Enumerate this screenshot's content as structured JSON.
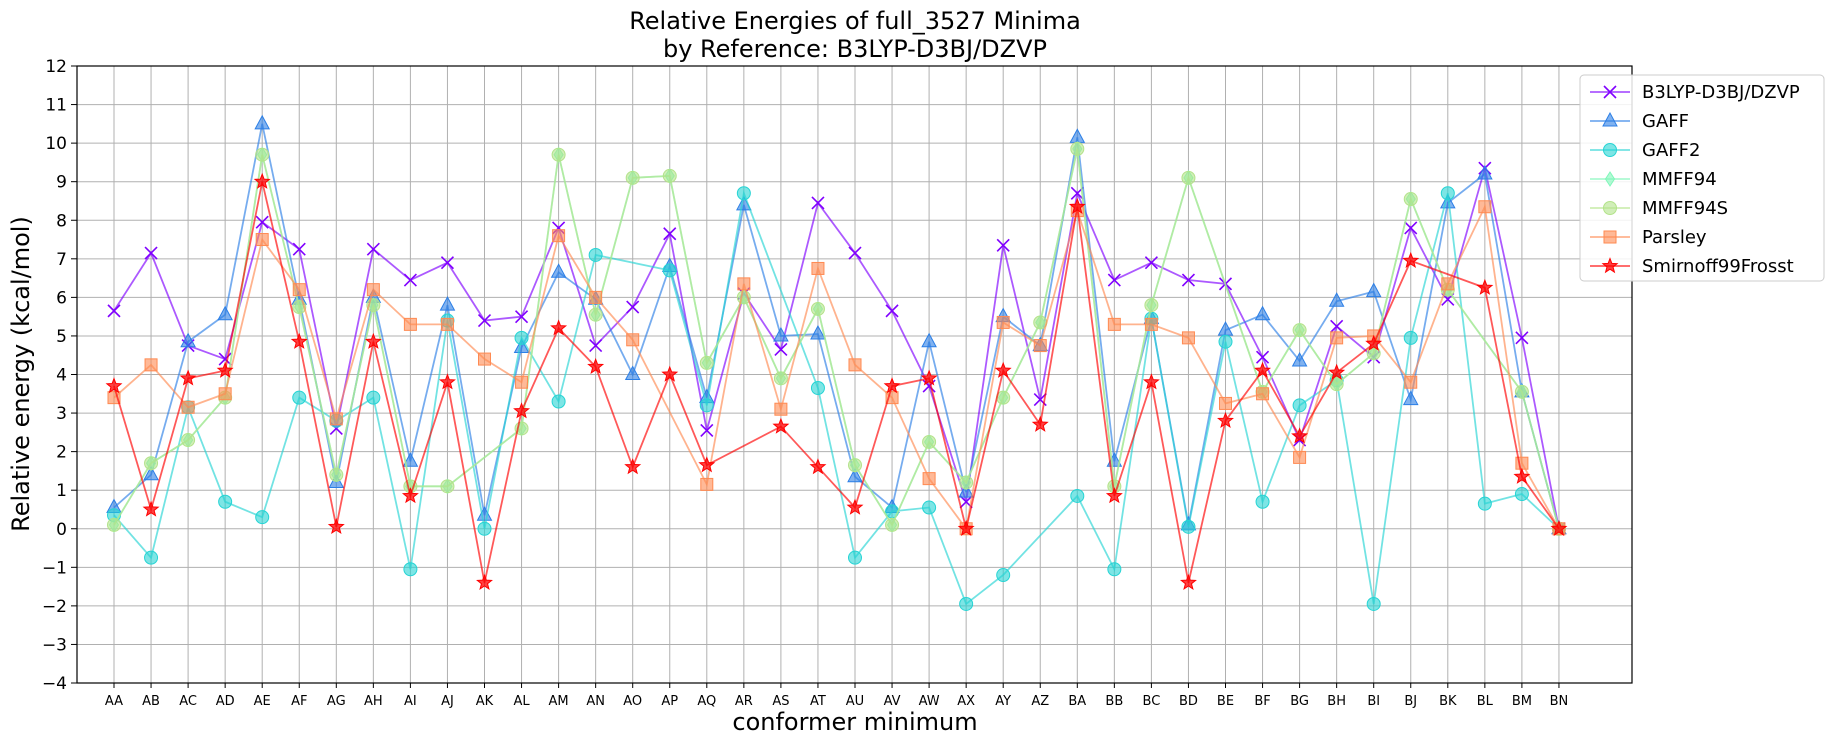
{
  "chart_data": {
    "type": "line",
    "title_line1": "Relative Energies of full_3527 Minima",
    "title_line2": "by Reference: B3LYP-D3BJ/DZVP",
    "xlabel": "conformer minimum",
    "ylabel": "Relative energy (kcal/mol)",
    "ylim": [
      -4,
      12
    ],
    "yticks": [
      -4,
      -3,
      -2,
      -1,
      0,
      1,
      2,
      3,
      4,
      5,
      6,
      7,
      8,
      9,
      10,
      11,
      12
    ],
    "grid": true,
    "legend_position": "top-right",
    "categories": [
      "AA",
      "AB",
      "AC",
      "AD",
      "AE",
      "AF",
      "AG",
      "AH",
      "AI",
      "AJ",
      "AK",
      "AL",
      "AM",
      "AN",
      "AO",
      "AP",
      "AQ",
      "AR",
      "AS",
      "AT",
      "AU",
      "AV",
      "AW",
      "AX",
      "AY",
      "AZ",
      "BA",
      "BB",
      "BC",
      "BD",
      "BE",
      "BF",
      "BG",
      "BH",
      "BI",
      "BJ",
      "BK",
      "BL",
      "BM",
      "BN"
    ],
    "series": [
      {
        "name": "B3LYP-D3BJ/DZVP",
        "color": "#8000ff",
        "marker": "x",
        "values": [
          5.65,
          7.15,
          4.75,
          4.4,
          7.95,
          7.25,
          2.6,
          7.25,
          6.45,
          6.9,
          5.4,
          5.5,
          7.8,
          4.75,
          5.75,
          7.65,
          2.55,
          6.1,
          4.65,
          8.45,
          7.15,
          5.65,
          3.7,
          0.7,
          7.35,
          3.35,
          8.7,
          6.45,
          6.9,
          6.45,
          6.35,
          4.45,
          2.3,
          5.25,
          4.45,
          7.8,
          5.95,
          9.35,
          4.95,
          0.0
        ]
      },
      {
        "name": "GAFF",
        "color": "#2c7fe6",
        "marker": "triangle",
        "values": [
          0.55,
          1.4,
          4.85,
          5.55,
          10.5,
          5.95,
          1.2,
          6.0,
          1.75,
          5.8,
          0.35,
          4.7,
          6.65,
          5.95,
          4.0,
          6.8,
          3.4,
          8.4,
          5.0,
          5.05,
          1.35,
          0.55,
          4.85,
          0.95,
          5.5,
          4.75,
          10.15,
          1.75,
          5.45,
          0.1,
          5.15,
          5.55,
          4.35,
          5.9,
          6.15,
          3.35,
          8.45,
          9.2,
          3.55,
          0.0
        ]
      },
      {
        "name": "GAFF2",
        "color": "#26d4d4",
        "marker": "circle",
        "values": [
          0.35,
          -0.75,
          3.15,
          0.7,
          0.3,
          3.4,
          2.8,
          3.4,
          -1.05,
          5.4,
          0.0,
          4.95,
          3.3,
          7.1,
          null,
          6.7,
          3.2,
          8.7,
          null,
          3.65,
          -0.75,
          0.45,
          0.55,
          -1.95,
          -1.2,
          null,
          0.85,
          -1.05,
          5.45,
          0.05,
          4.85,
          0.7,
          3.2,
          3.85,
          -1.95,
          4.95,
          8.7,
          0.65,
          0.9,
          0.0
        ]
      },
      {
        "name": "MMFF94",
        "color": "#7ff7b9",
        "marker": "diamond",
        "values": [
          0.1,
          1.7,
          2.3,
          3.4,
          9.7,
          5.75,
          1.4,
          5.8,
          1.1,
          1.1,
          null,
          2.6,
          9.7,
          5.55,
          9.1,
          9.15,
          4.3,
          6.0,
          3.9,
          5.7,
          1.65,
          0.1,
          2.25,
          1.2,
          3.4,
          5.35,
          9.85,
          1.1,
          5.8,
          9.1,
          null,
          3.55,
          5.15,
          3.75,
          4.55,
          8.55,
          6.2,
          null,
          3.55,
          0.0
        ]
      },
      {
        "name": "MMFF94S",
        "color": "#b3e38a",
        "marker": "circle",
        "values": [
          0.1,
          1.7,
          2.3,
          3.4,
          9.7,
          5.75,
          1.4,
          5.8,
          1.1,
          1.1,
          null,
          2.6,
          9.7,
          5.55,
          9.1,
          9.15,
          4.3,
          6.0,
          3.9,
          5.7,
          1.65,
          0.1,
          2.25,
          1.2,
          3.4,
          5.35,
          9.85,
          1.1,
          5.8,
          9.1,
          null,
          3.55,
          5.15,
          3.75,
          4.55,
          8.55,
          6.2,
          null,
          3.55,
          0.0
        ]
      },
      {
        "name": "Parsley",
        "color": "#ff8a52",
        "marker": "square",
        "values": [
          3.4,
          4.25,
          3.15,
          3.5,
          7.5,
          6.2,
          2.85,
          6.2,
          5.3,
          5.3,
          4.4,
          3.8,
          7.6,
          6.0,
          4.9,
          null,
          1.15,
          6.35,
          3.1,
          6.75,
          4.25,
          3.4,
          1.3,
          0.0,
          5.35,
          4.75,
          8.25,
          5.3,
          5.3,
          4.95,
          3.25,
          3.5,
          1.85,
          4.95,
          5.0,
          3.8,
          6.35,
          8.35,
          1.7,
          0.0
        ]
      },
      {
        "name": "Smirnoff99Frosst",
        "color": "#ff0000",
        "marker": "star",
        "values": [
          3.7,
          0.5,
          3.9,
          4.1,
          9.0,
          4.85,
          0.05,
          4.85,
          0.85,
          3.8,
          -1.4,
          3.05,
          5.2,
          4.2,
          1.6,
          4.0,
          1.65,
          null,
          2.65,
          1.6,
          0.55,
          3.7,
          3.9,
          0.0,
          4.1,
          2.7,
          8.35,
          0.85,
          3.8,
          -1.4,
          2.8,
          4.1,
          2.4,
          4.05,
          4.8,
          6.95,
          null,
          6.25,
          1.35,
          0.0
        ]
      }
    ]
  }
}
